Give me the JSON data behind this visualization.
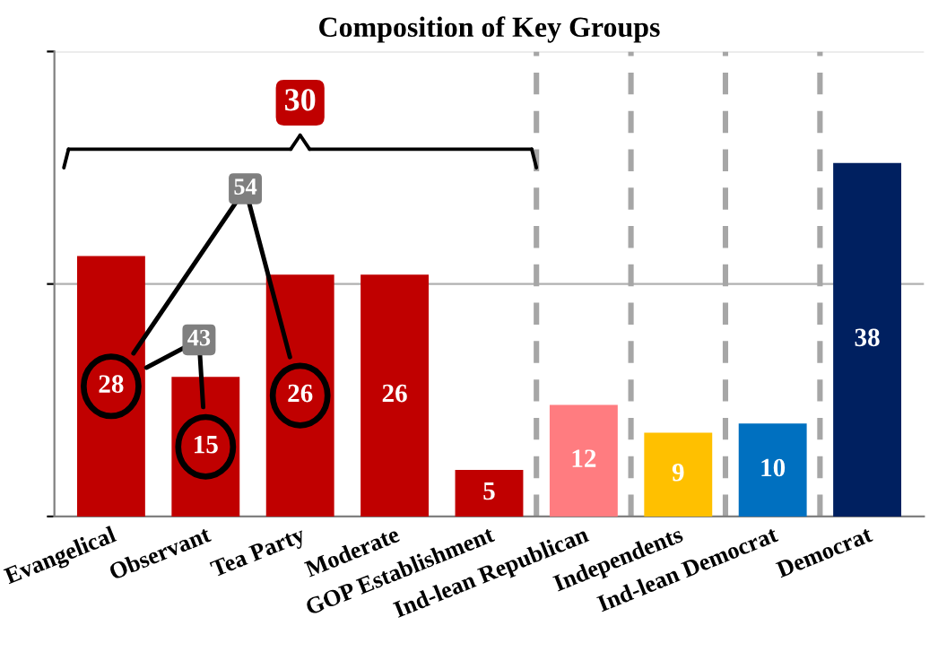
{
  "chart_data": {
    "type": "bar",
    "title": "Composition of Key Groups",
    "categories": [
      "Evangelical",
      "Observant",
      "Tea Party",
      "Moderate",
      "GOP Establishment",
      "Ind-lean Republican",
      "Independents",
      "Ind-lean Democrat",
      "Democrat"
    ],
    "values": [
      28,
      15,
      26,
      26,
      5,
      12,
      9,
      10,
      38
    ],
    "colors": [
      "#c00000",
      "#c00000",
      "#c00000",
      "#c00000",
      "#c00000",
      "#ff7c80",
      "#ffc000",
      "#0070c0",
      "#002060"
    ],
    "ylim": [
      0,
      50
    ],
    "yticks": [
      {
        "value": 0,
        "label": null
      },
      {
        "value": 25,
        "label": null
      },
      {
        "value": 50,
        "label": null
      }
    ],
    "data_labels": true,
    "ref_lines": [
      {
        "axis": "y",
        "value": 25,
        "color": "#b0b0b0"
      },
      {
        "axis": "y",
        "value": 50,
        "color": "#d9d9d9"
      }
    ],
    "annotations": [
      "30",
      "54",
      "43"
    ]
  }
}
